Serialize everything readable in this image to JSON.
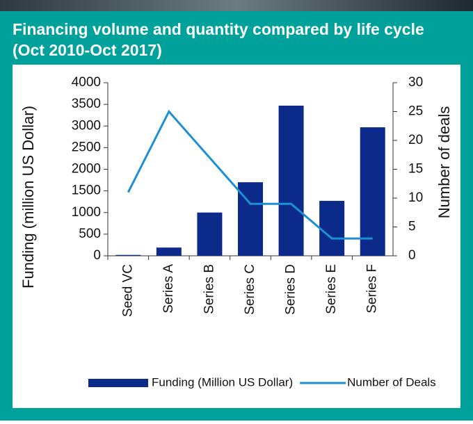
{
  "chart_data": {
    "type": "bar",
    "title": "Financing volume and quantity compared by life cycle (Oct 2010-Oct 2017)",
    "categories": [
      "Seed VC",
      "Series A",
      "Series B",
      "Series C",
      "Series D",
      "Series E",
      "Series F"
    ],
    "series": [
      {
        "name": "Funding (Million US Dollar)",
        "type": "bar",
        "color": "#0b2a8a",
        "values": [
          20,
          190,
          1000,
          1700,
          3470,
          1270,
          2970
        ]
      },
      {
        "name": "Number of Deals",
        "type": "line",
        "axis": "y2",
        "color": "#1b8fd6",
        "values": [
          11,
          25,
          17,
          9,
          9,
          3,
          3
        ]
      }
    ],
    "ylabel": "Funding (million US Dollar)",
    "y2label": "Number of deals",
    "ylim": [
      0,
      4000
    ],
    "yticks": [
      0,
      500,
      1000,
      1500,
      2000,
      2500,
      3000,
      3500,
      4000
    ],
    "y2lim": [
      0,
      30
    ],
    "y2ticks": [
      0,
      5,
      10,
      15,
      20,
      25,
      30
    ],
    "legend": "bottom"
  }
}
